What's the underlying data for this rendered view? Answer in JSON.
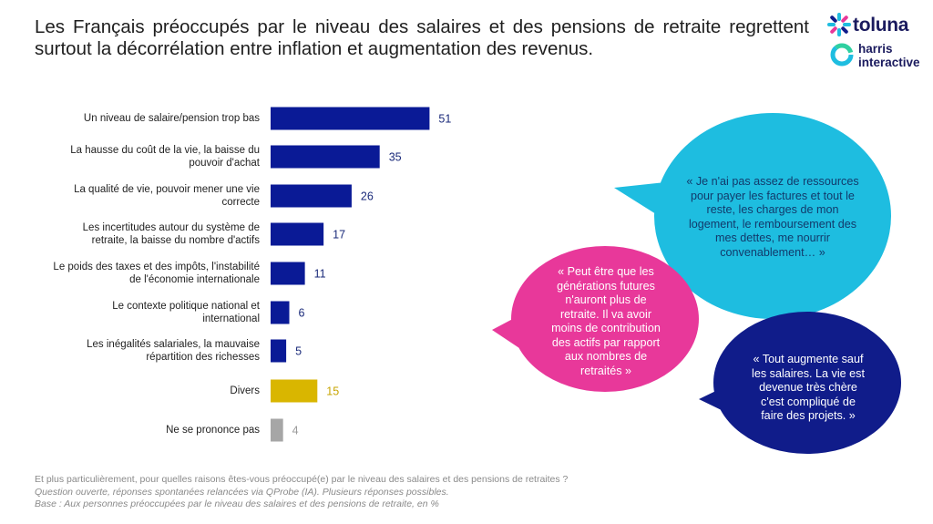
{
  "title": "Les Français préoccupés par le niveau des salaires et des pensions de retraite regrettent surtout la décorrélation entre inflation et augmentation des revenus.",
  "logo": {
    "brand": "toluna",
    "sub_line1": "harris",
    "sub_line2": "interactive"
  },
  "colors": {
    "main_bar": "#0a1a96",
    "divers_bar": "#d9b600",
    "nsp_bar": "#a6a6a6",
    "bubble_cyan": "#1ebde0",
    "bubble_magenta": "#e8389a",
    "bubble_navy": "#101c8a"
  },
  "chart_data": {
    "type": "bar",
    "orientation": "horizontal",
    "categories": [
      "Un niveau de salaire/pension trop bas",
      "La hausse du coût de la vie, la baisse du pouvoir d'achat",
      "La qualité de vie, pouvoir mener une vie correcte",
      "Les incertitudes autour du système de retraite, la baisse du nombre d'actifs",
      "Le poids des taxes et des impôts, l'instabilité de l'économie internationale",
      "Le contexte politique national et international",
      "Les inégalités salariales, la mauvaise répartition des richesses",
      "Divers",
      "Ne se prononce pas"
    ],
    "category_lines": [
      [
        "Un niveau de salaire/pension trop bas"
      ],
      [
        "La hausse du coût de la vie, la baisse du",
        "pouvoir d'achat"
      ],
      [
        "La qualité de vie, pouvoir mener une vie",
        "correcte"
      ],
      [
        "Les incertitudes autour du système de",
        "retraite, la baisse du nombre d'actifs"
      ],
      [
        "Le poids des taxes et des impôts, l'instabilité",
        "de l'économie internationale"
      ],
      [
        "Le contexte politique national et",
        "international"
      ],
      [
        "Les inégalités salariales, la mauvaise",
        "répartition des richesses"
      ],
      [
        "Divers"
      ],
      [
        "Ne se prononce pas"
      ]
    ],
    "values": [
      51,
      35,
      26,
      17,
      11,
      6,
      5,
      15,
      4
    ],
    "bar_color_keys": [
      "main",
      "main",
      "main",
      "main",
      "main",
      "main",
      "main",
      "divers",
      "nsp"
    ],
    "unit": "%"
  },
  "quotes": {
    "cyan": [
      "« Je n'ai pas assez de ressources",
      "pour payer les factures et tout le",
      "reste, les charges de mon",
      "logement, le remboursement des",
      "mes dettes, me nourrir",
      "convenablement… »"
    ],
    "magenta": [
      "« Peut être que les",
      "générations futures",
      "n'auront plus de",
      "retraite. Il va avoir",
      "moins de contribution",
      "des actifs par rapport",
      "aux nombres de",
      "retraités »"
    ],
    "navy": [
      "« Tout augmente sauf",
      "les salaires. La vie est",
      "devenue très chère",
      "c'est compliqué de",
      "faire des projets. »"
    ]
  },
  "footnote": {
    "question": "Et plus particulièrement, pour quelles raisons êtes-vous préoccupé(e) par le niveau des salaires et des pensions de retraites ?",
    "method": "Question ouverte, réponses spontanées relancées via QProbe (IA). Plusieurs réponses possibles.",
    "base": "Base : Aux personnes préoccupées par le niveau des salaires et des pensions de retraite, en %"
  }
}
